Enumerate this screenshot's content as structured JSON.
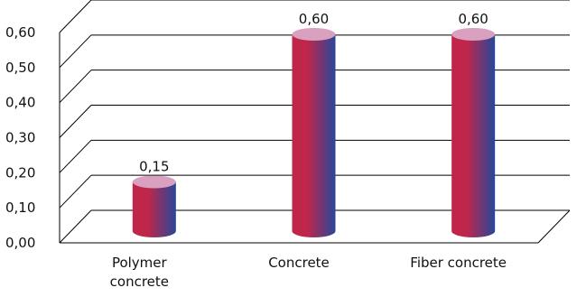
{
  "chart_data": {
    "type": "bar",
    "style": "3d-cylinder",
    "categories": [
      "Polymer concrete",
      "Concrete",
      "Fiber concrete"
    ],
    "category_label_lines": [
      [
        "Polymer",
        "concrete"
      ],
      [
        "Concrete"
      ],
      [
        "Fiber concrete"
      ]
    ],
    "values": [
      0.15,
      0.6,
      0.6
    ],
    "data_labels": [
      "0,15",
      "0,60",
      "0,60"
    ],
    "y_ticks": [
      0.0,
      0.1,
      0.2,
      0.3,
      0.4,
      0.5,
      0.6
    ],
    "y_tick_labels": [
      "0,00",
      "0,10",
      "0,20",
      "0,30",
      "0,40",
      "0,50",
      "0,60"
    ],
    "ylim": [
      0,
      0.6
    ],
    "grid": true,
    "legend": "none",
    "colors": {
      "bar_left": "#c0264a",
      "bar_right": "#27479a",
      "bar_top": "#d9a0c0",
      "grid": "#000000"
    }
  }
}
